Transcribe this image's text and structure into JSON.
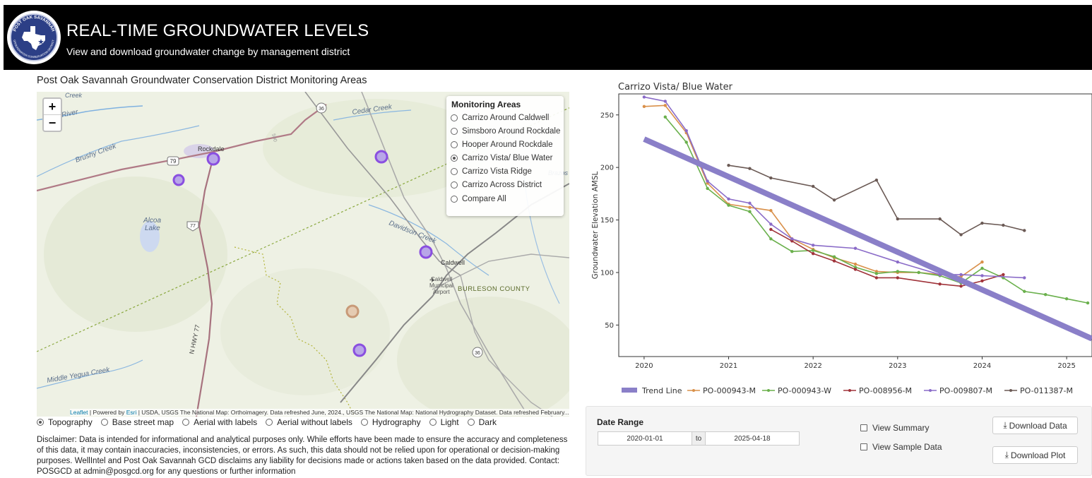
{
  "header": {
    "title": "REAL-TIME GROUNDWATER LEVELS",
    "subtitle": "View and download groundwater change by management district",
    "logo_text_top": "POST OAK SAVANNAH",
    "logo_text_bottom": "GROUNDWATER CONSERVATION DISTRICT"
  },
  "map": {
    "heading": "Post Oak Savannah Groundwater Conservation District Monitoring Areas",
    "zoom_in": "+",
    "zoom_out": "−",
    "legend_title": "Monitoring Areas",
    "areas": [
      {
        "label": "Carrizo Around Caldwell",
        "selected": false
      },
      {
        "label": "Simsboro Around Rockdale",
        "selected": false
      },
      {
        "label": "Hooper Around Rockdale",
        "selected": false
      },
      {
        "label": "Carrizo Vista/ Blue Water",
        "selected": true
      },
      {
        "label": "Carrizo Vista Ridge",
        "selected": false
      },
      {
        "label": "Carrizo Across District",
        "selected": false
      },
      {
        "label": "Compare All",
        "selected": false
      }
    ],
    "labels": {
      "rockdale": "Rockdale",
      "caldwell": "Caldwell",
      "airport": "Caldwell\nMunicipal\nAirport",
      "burleson": "BURLESON COUNTY",
      "alcoa": "Alcoa\nLake",
      "brushy": "Brushy Creek",
      "cedar": "Cedar Creek",
      "davidson": "Davidson Creek",
      "yegua": "Middle Yegua Creek",
      "river": "River",
      "nhwy": "N HWY 77",
      "brazos": "Brazos R",
      "creek_top": "Creek",
      "route_79": "79",
      "route_77": "77",
      "route_36a": "36",
      "route_36b": "36",
      "route_500": "500"
    },
    "attribution_leaflet": "Leaflet",
    "attribution_powered": " | Powered by ",
    "attribution_esri": "Esri",
    "attribution_rest": " | USDA, USGS The National Map: Orthoimagery. Data refreshed June, 2024., USGS The National Map: National Hydrography Dataset. Data refreshed February...",
    "basemaps": [
      {
        "label": "Topography",
        "selected": true
      },
      {
        "label": "Base street map",
        "selected": false
      },
      {
        "label": "Aerial with labels",
        "selected": false
      },
      {
        "label": "Aerial without labels",
        "selected": false
      },
      {
        "label": "Hydrography",
        "selected": false
      },
      {
        "label": "Light",
        "selected": false
      },
      {
        "label": "Dark",
        "selected": false
      }
    ],
    "well_color": "#8a4fe0",
    "well_alt_color": "#c89a78"
  },
  "disclaimer": "Disclaimer: Data is intended for informational and analytical purposes only. While efforts have been made to ensure the accuracy and completeness of this data, it may contain inaccuracies, inconsistencies, or errors. As such, this data should not be relied upon for operational or decision-making purposes. WellIntel and Post Oak Savannah GCD disclaims any liability for decisions made or actions taken based on the data provided. Contact: POSGCD at admin@posgcd.org for any questions or further information",
  "chart_data": {
    "type": "line",
    "title": "Carrizo Vista/ Blue Water",
    "xlabel": "",
    "ylabel": "Groundwater Elevation AMSL",
    "xlim": [
      2019.7,
      2025.3
    ],
    "ylim": [
      20,
      270
    ],
    "xticks": [
      2020,
      2021,
      2022,
      2023,
      2024,
      2025
    ],
    "yticks": [
      50,
      100,
      150,
      200,
      250
    ],
    "legend_position": "bottom",
    "trend": {
      "name": "Trend Line",
      "color": "#8a7fc8",
      "x": [
        2020,
        2025.3
      ],
      "y": [
        227,
        37
      ]
    },
    "series": [
      {
        "name": "PO-000943-M",
        "color": "#d9904a",
        "x": [
          2020,
          2020.25,
          2020.5,
          2020.75,
          2021,
          2021.25,
          2021.5,
          2021.75,
          2022,
          2022.25,
          2022.5,
          2022.75,
          2023,
          2023.25,
          2023.5,
          2023.75,
          2024
        ],
        "y": [
          258,
          259,
          233,
          185,
          165,
          162,
          159,
          132,
          122,
          114,
          108,
          101,
          100,
          100,
          98,
          96,
          110
        ]
      },
      {
        "name": "PO-000943-W",
        "color": "#6ab04c",
        "x": [
          2020.25,
          2020.5,
          2020.75,
          2021,
          2021.25,
          2021.5,
          2021.75,
          2022,
          2022.25,
          2022.5,
          2022.75,
          2023,
          2023.25,
          2023.5,
          2023.75,
          2024,
          2024.25,
          2024.5,
          2024.75,
          2025,
          2025.25
        ],
        "y": [
          248,
          224,
          180,
          164,
          158,
          132,
          120,
          121,
          115,
          105,
          99,
          101,
          100,
          97,
          90,
          104,
          95,
          82,
          79,
          75,
          71
        ]
      },
      {
        "name": "PO-008956-M",
        "color": "#a0333a",
        "x": [
          2021.5,
          2021.75,
          2022,
          2022.25,
          2022.5,
          2022.75,
          2023,
          2023.5,
          2023.75,
          2024,
          2024.25
        ],
        "y": [
          141,
          130,
          118,
          111,
          103,
          95,
          95,
          89,
          87,
          92,
          98
        ]
      },
      {
        "name": "PO-009807-M",
        "color": "#8a6bc8",
        "x": [
          2020,
          2020.25,
          2020.5,
          2020.75,
          2021,
          2021.25,
          2021.5,
          2021.75,
          2022,
          2022.5,
          2023,
          2023.5,
          2023.75,
          2024,
          2024.5
        ],
        "y": [
          267,
          263,
          235,
          187,
          170,
          166,
          146,
          132,
          126,
          123,
          110,
          98,
          98,
          97,
          95
        ]
      },
      {
        "name": "PO-011387-M",
        "color": "#6b5a55",
        "x": [
          2021,
          2021.25,
          2021.5,
          2022,
          2022.25,
          2022.75,
          2023,
          2023.5,
          2023.75,
          2024,
          2024.25,
          2024.5
        ],
        "y": [
          202,
          199,
          190,
          182,
          169,
          188,
          151,
          151,
          136,
          147,
          145,
          140
        ]
      }
    ]
  },
  "controls": {
    "date_range_label": "Date Range",
    "start_date": "2020-01-01",
    "to": "to",
    "end_date": "2025-04-18",
    "view_summary": "View Summary",
    "view_sample": "View Sample Data",
    "download_data": "Download Data",
    "download_plot": "Download Plot",
    "download_icon": "⤓"
  }
}
